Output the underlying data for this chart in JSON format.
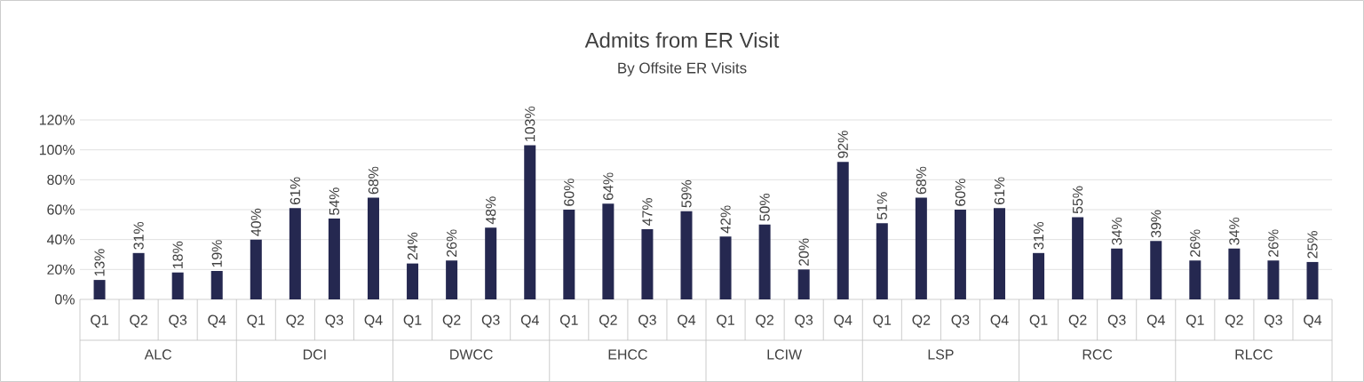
{
  "chart_data": {
    "type": "bar",
    "title": "Admits from ER Visit",
    "subtitle": "By Offsite ER Visits",
    "categories": [
      "Q1",
      "Q2",
      "Q3",
      "Q4",
      "Q1",
      "Q2",
      "Q3",
      "Q4",
      "Q1",
      "Q2",
      "Q3",
      "Q4",
      "Q1",
      "Q2",
      "Q3",
      "Q4",
      "Q1",
      "Q2",
      "Q3",
      "Q4",
      "Q1",
      "Q2",
      "Q3",
      "Q4",
      "Q1",
      "Q2",
      "Q3",
      "Q4",
      "Q1",
      "Q2",
      "Q3",
      "Q4"
    ],
    "values": [
      13,
      31,
      18,
      19,
      40,
      61,
      54,
      68,
      24,
      26,
      48,
      103,
      60,
      64,
      47,
      59,
      42,
      50,
      20,
      92,
      51,
      68,
      60,
      61,
      31,
      55,
      34,
      39,
      26,
      34,
      26,
      25
    ],
    "value_labels": [
      "13%",
      "31%",
      "18%",
      "19%",
      "40%",
      "61%",
      "54%",
      "68%",
      "24%",
      "26%",
      "48%",
      "103%",
      "60%",
      "64%",
      "47%",
      "59%",
      "42%",
      "50%",
      "20%",
      "92%",
      "51%",
      "68%",
      "60%",
      "61%",
      "31%",
      "55%",
      "34%",
      "39%",
      "26%",
      "34%",
      "26%",
      "25%"
    ],
    "color": "#252850",
    "annotations": [
      "ALC",
      "DCI",
      "DWCC",
      "EHCC",
      "LCIW",
      "LSP",
      "RCC",
      "RLCC"
    ],
    "ylim": [
      0,
      120
    ],
    "yticks": [
      {
        "value": 0,
        "label": "0%"
      },
      {
        "value": 20,
        "label": "20%"
      },
      {
        "value": 40,
        "label": "40%"
      },
      {
        "value": 60,
        "label": "60%"
      },
      {
        "value": 80,
        "label": "80%"
      },
      {
        "value": 100,
        "label": "100%"
      },
      {
        "value": 120,
        "label": "120%"
      }
    ],
    "grid": "y"
  }
}
